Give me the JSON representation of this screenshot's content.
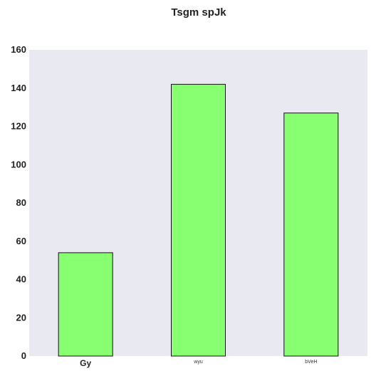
{
  "chart_data": {
    "type": "bar",
    "title": "Tsgm spJk",
    "xlabel": "",
    "ylabel": "",
    "categories": [
      "Gy",
      "wyu",
      "bVeH"
    ],
    "values": [
      54,
      142,
      127
    ],
    "ylim": [
      0,
      160
    ],
    "yticks": [
      0,
      20,
      40,
      60,
      80,
      100,
      120,
      140,
      160
    ],
    "grid": false,
    "legend": "none",
    "colors": {
      "bar_fill": "#88ff70",
      "bar_stroke": "#111111",
      "plot_background": "#e9e9f2",
      "page_background": "#ffffff"
    }
  }
}
